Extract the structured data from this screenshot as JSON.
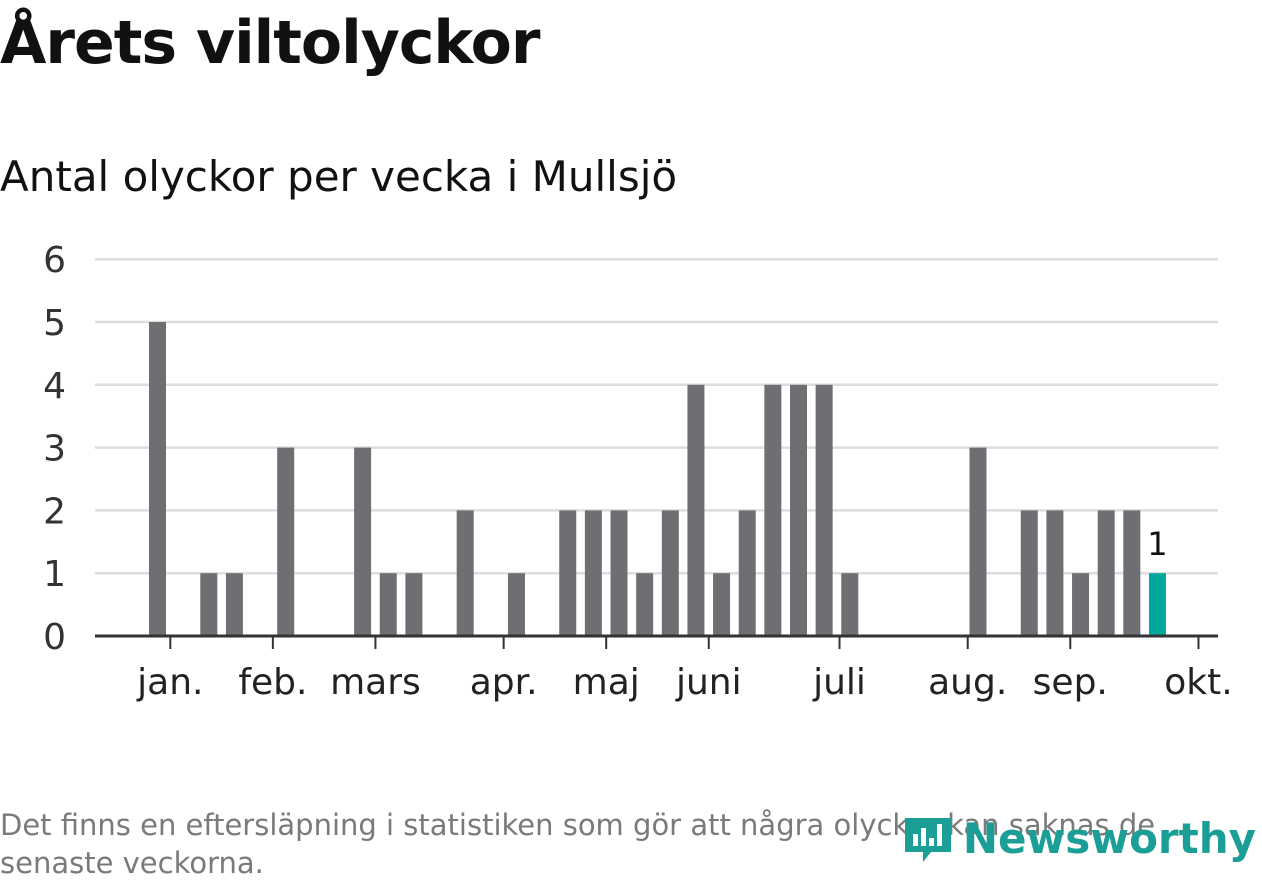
{
  "title": "Årets viltolyckor",
  "subtitle": "Antal olyckor per vecka i Mullsjö",
  "footnote": "Det finns en eftersläpning i statistiken som gör att några olyckor kan saknas de senaste veckorna.",
  "brand": "Newsworthy",
  "colors": {
    "bar": "#6f6e73",
    "highlight": "#00a79d",
    "grid": "#dddddd",
    "axis": "#333333",
    "brand": "#1a9e96"
  },
  "chart_data": {
    "type": "bar",
    "title": "Antal olyckor per vecka i Mullsjö",
    "xlabel": "",
    "ylabel": "",
    "ylim": [
      0,
      6
    ],
    "yticks": [
      0,
      1,
      2,
      3,
      4,
      5,
      6
    ],
    "weeks": [
      1,
      2,
      3,
      4,
      5,
      6,
      7,
      8,
      9,
      10,
      11,
      12,
      13,
      14,
      15,
      16,
      17,
      18,
      19,
      20,
      21,
      22,
      23,
      24,
      25,
      26,
      27,
      28,
      29,
      30,
      31,
      32,
      33,
      34,
      35,
      36,
      37,
      38,
      39,
      40
    ],
    "values": [
      0,
      5,
      0,
      1,
      1,
      0,
      3,
      0,
      0,
      3,
      1,
      1,
      0,
      2,
      0,
      1,
      0,
      2,
      2,
      2,
      1,
      2,
      4,
      1,
      2,
      4,
      4,
      4,
      1,
      0,
      0,
      0,
      0,
      3,
      0,
      2,
      2,
      1,
      2,
      2
    ],
    "highlight": {
      "week": 41,
      "value": 1,
      "label": "1"
    },
    "month_ticks": [
      {
        "label": "jan.",
        "week": 2.5
      },
      {
        "label": "feb.",
        "week": 6.5
      },
      {
        "label": "mars",
        "week": 10.5
      },
      {
        "label": "apr.",
        "week": 15.5
      },
      {
        "label": "maj",
        "week": 19.5
      },
      {
        "label": "juni",
        "week": 23.5
      },
      {
        "label": "juli",
        "week": 28.6
      },
      {
        "label": "aug.",
        "week": 33.6
      },
      {
        "label": "sep.",
        "week": 37.6
      },
      {
        "label": "okt.",
        "week": 42.6
      }
    ],
    "legend": "none",
    "grid": true
  }
}
